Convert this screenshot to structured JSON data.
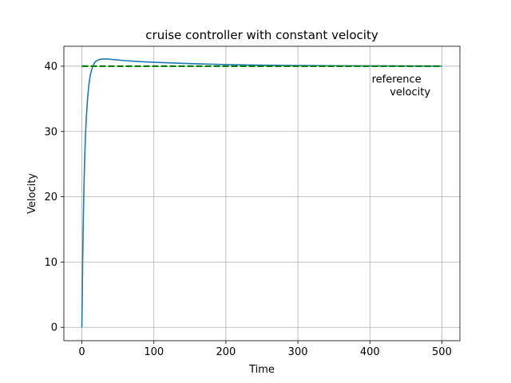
{
  "chart_data": {
    "type": "line",
    "title": "cruise controller with constant velocity",
    "xlabel": "Time",
    "ylabel": "Velocity",
    "xlim": [
      -25,
      525
    ],
    "ylim": [
      -2.05,
      43.05
    ],
    "xticks": [
      0,
      100,
      200,
      300,
      400,
      500
    ],
    "yticks": [
      0,
      10,
      20,
      30,
      40
    ],
    "grid": true,
    "series": [
      {
        "color": "#1f77b4",
        "style": "solid",
        "x": [
          0,
          1,
          2,
          3,
          4,
          5,
          6,
          8,
          10,
          12,
          15,
          18,
          20,
          25,
          30,
          35,
          40,
          50,
          60,
          80,
          100,
          150,
          200,
          250,
          300,
          350,
          400,
          450,
          500
        ],
        "y": [
          0,
          9.5,
          16.5,
          22.0,
          26.2,
          29.3,
          31.8,
          35.2,
          37.4,
          38.8,
          40.0,
          40.6,
          40.8,
          41.05,
          41.1,
          41.1,
          41.05,
          40.95,
          40.85,
          40.7,
          40.6,
          40.4,
          40.25,
          40.15,
          40.1,
          40.07,
          40.05,
          40.03,
          40.02
        ]
      },
      {
        "color": "#008000",
        "style": "dashed",
        "x": [
          0,
          500
        ],
        "y": [
          40,
          40
        ]
      }
    ],
    "annotations": [
      {
        "lines": [
          "reference",
          "velocity"
        ],
        "x": 437,
        "y": 37.5
      }
    ]
  }
}
